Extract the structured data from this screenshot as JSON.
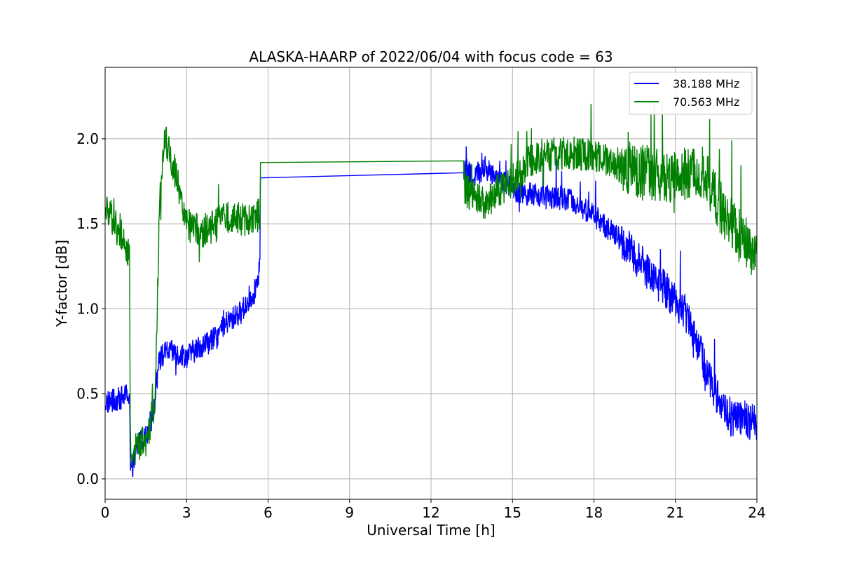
{
  "chart_data": {
    "type": "line",
    "title": "ALASKA-HAARP of 2022/06/04 with focus code = 63",
    "xlabel": "Universal Time [h]",
    "ylabel": "Y-factor [dB]",
    "xlim": [
      0,
      24
    ],
    "ylim": [
      -0.12,
      2.42
    ],
    "xticks": [
      0,
      3,
      6,
      9,
      12,
      15,
      18,
      21,
      24
    ],
    "xtick_labels": [
      "0",
      "3",
      "6",
      "9",
      "12",
      "15",
      "18",
      "21",
      "24"
    ],
    "yticks": [
      0.0,
      0.5,
      1.0,
      1.5,
      2.0
    ],
    "ytick_labels": [
      "0.0",
      "0.5",
      "1.0",
      "1.5",
      "2.0"
    ],
    "grid": true,
    "legend_position": "top-right",
    "series": [
      {
        "name": "38.188 MHz",
        "color": "#0000ff",
        "noise": 0.07,
        "points": [
          [
            0.0,
            0.45
          ],
          [
            0.4,
            0.46
          ],
          [
            0.9,
            0.5
          ],
          [
            0.93,
            0.05
          ],
          [
            0.97,
            0.05
          ],
          [
            1.2,
            0.2
          ],
          [
            1.5,
            0.25
          ],
          [
            1.8,
            0.4
          ],
          [
            1.95,
            0.7
          ],
          [
            2.3,
            0.75
          ],
          [
            3.0,
            0.72
          ],
          [
            3.5,
            0.78
          ],
          [
            4.0,
            0.82
          ],
          [
            4.5,
            0.92
          ],
          [
            5.0,
            0.98
          ],
          [
            5.5,
            1.1
          ],
          [
            5.7,
            1.25
          ],
          [
            5.72,
            1.77
          ],
          [
            13.2,
            1.8
          ],
          [
            13.25,
            1.82
          ],
          [
            13.5,
            1.78
          ],
          [
            14.0,
            1.82
          ],
          [
            14.5,
            1.78
          ],
          [
            15.0,
            1.7
          ],
          [
            15.5,
            1.68
          ],
          [
            16.0,
            1.66
          ],
          [
            17.0,
            1.65
          ],
          [
            18.0,
            1.55
          ],
          [
            19.0,
            1.4
          ],
          [
            20.0,
            1.22
          ],
          [
            21.0,
            1.05
          ],
          [
            21.5,
            0.95
          ],
          [
            22.0,
            0.7
          ],
          [
            22.5,
            0.5
          ],
          [
            23.0,
            0.35
          ],
          [
            23.5,
            0.35
          ],
          [
            24.0,
            0.32
          ]
        ]
      },
      {
        "name": "70.563 MHz",
        "color": "#008000",
        "noise": 0.1,
        "points": [
          [
            0.0,
            1.6
          ],
          [
            0.5,
            1.48
          ],
          [
            0.9,
            1.32
          ],
          [
            0.93,
            0.15
          ],
          [
            1.3,
            0.2
          ],
          [
            1.6,
            0.25
          ],
          [
            1.85,
            0.5
          ],
          [
            2.0,
            1.6
          ],
          [
            2.2,
            2.0
          ],
          [
            2.5,
            1.85
          ],
          [
            3.0,
            1.5
          ],
          [
            3.5,
            1.45
          ],
          [
            4.0,
            1.48
          ],
          [
            4.5,
            1.55
          ],
          [
            5.0,
            1.52
          ],
          [
            5.7,
            1.55
          ],
          [
            5.72,
            1.86
          ],
          [
            13.2,
            1.87
          ],
          [
            13.25,
            1.7
          ],
          [
            14.0,
            1.62
          ],
          [
            14.5,
            1.7
          ],
          [
            15.0,
            1.75
          ],
          [
            15.5,
            1.85
          ],
          [
            16.0,
            1.9
          ],
          [
            17.0,
            1.92
          ],
          [
            18.0,
            1.9
          ],
          [
            19.0,
            1.84
          ],
          [
            20.0,
            1.8
          ],
          [
            21.0,
            1.78
          ],
          [
            22.0,
            1.8
          ],
          [
            22.5,
            1.65
          ],
          [
            23.0,
            1.5
          ],
          [
            23.5,
            1.4
          ],
          [
            24.0,
            1.3
          ]
        ]
      }
    ]
  }
}
